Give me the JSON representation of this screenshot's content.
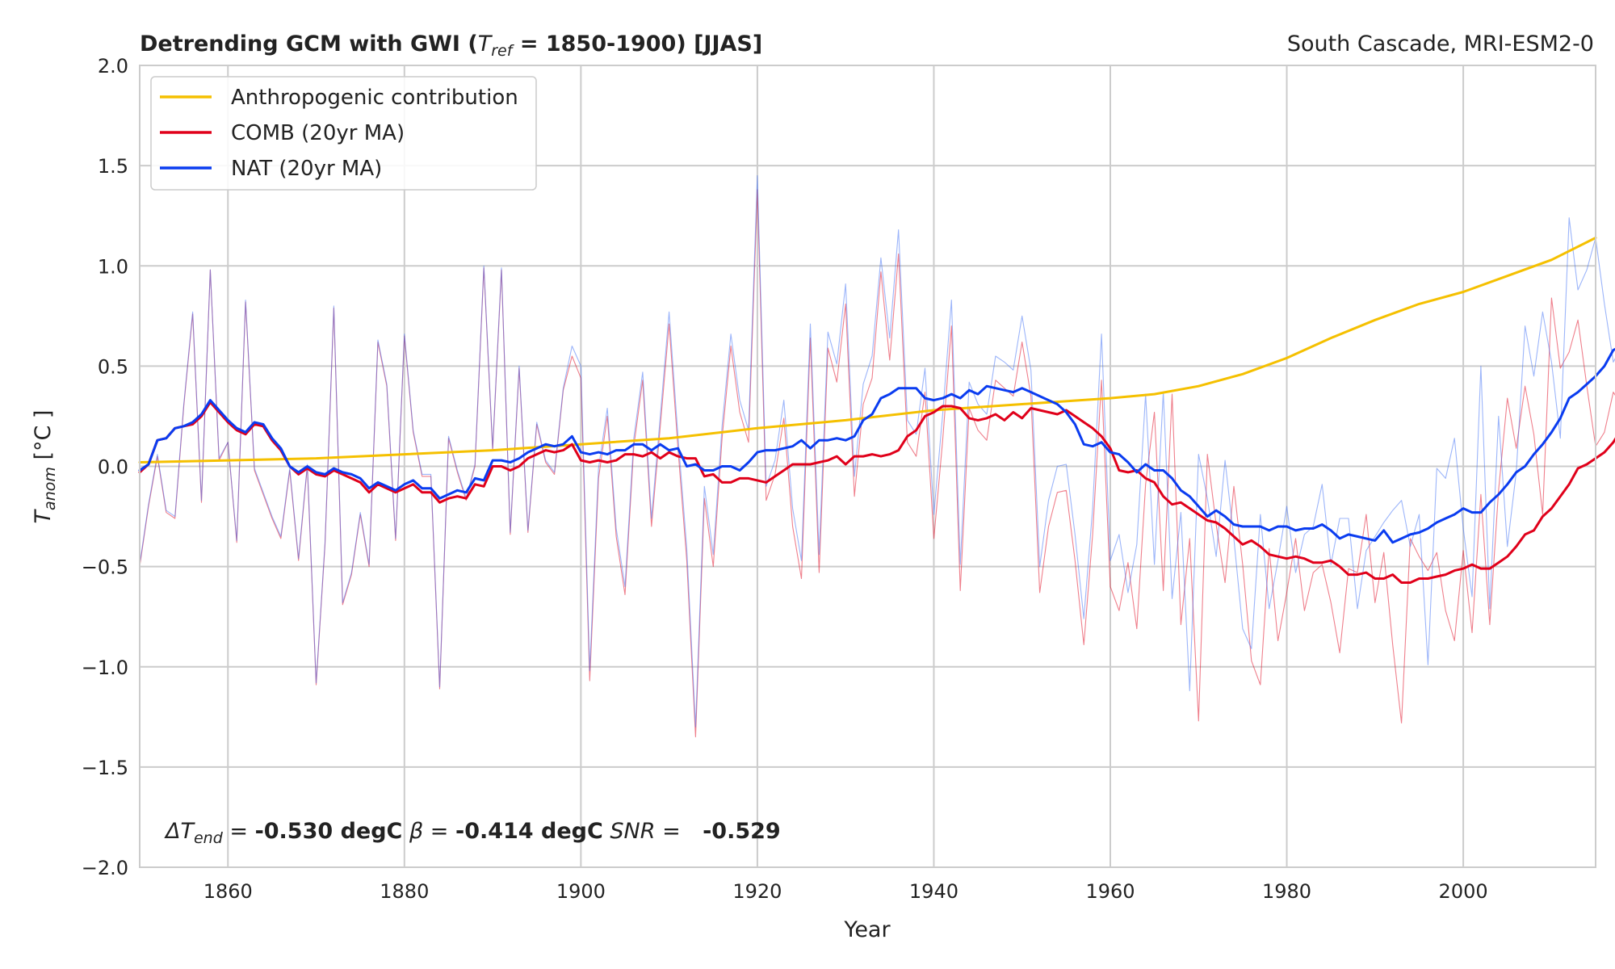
{
  "chart_data": {
    "type": "line",
    "title": "Detrending GCM with GWI (T_ref = 1850-1900) [JJAS]",
    "title_parts": {
      "prefix": "Detrending GCM with GWI (",
      "t": "T",
      "sub": "ref",
      "suffix": " = 1850-1900) [JJAS]"
    },
    "subtitle": "South Cascade, MRI-ESM2-0",
    "xlabel": "Year",
    "ylabel_parts": {
      "t": "T",
      "sub": "anom",
      "unit": " [°C ]"
    },
    "xlim": [
      1850,
      2015
    ],
    "ylim": [
      -2.0,
      2.0
    ],
    "xticks": [
      1860,
      1880,
      1900,
      1920,
      1940,
      1960,
      1980,
      2000
    ],
    "yticks": [
      -2.0,
      -1.5,
      -1.0,
      -0.5,
      0.0,
      0.5,
      1.0,
      1.5,
      2.0
    ],
    "ytick_labels": [
      "−2.0",
      "−1.5",
      "−1.0",
      "−0.5",
      "0.0",
      "0.5",
      "1.0",
      "1.5",
      "2.0"
    ],
    "grid": true,
    "legend_position": "upper-left",
    "legend": [
      {
        "name": "Anthropogenic contribution",
        "color": "#f5c000"
      },
      {
        "name": "COMB (20yr MA)",
        "color": "#e0001a"
      },
      {
        "name": "NAT (20yr MA)",
        "color": "#0a3cf0"
      }
    ],
    "annotation": {
      "delta_sym": "ΔT",
      "delta_sub": "end",
      "delta_val": " -0.530 degC",
      "beta_sym": "β",
      "beta_val": " -0.414 degC",
      "snr_sym": "SNR",
      "snr_val": "  -0.529",
      "eq": " = "
    },
    "x_start": 1850,
    "series": [
      {
        "name": "Anthropogenic contribution",
        "color": "#f5c000",
        "width": 3,
        "x": [
          1850,
          1860,
          1870,
          1880,
          1890,
          1900,
          1910,
          1920,
          1930,
          1940,
          1950,
          1960,
          1965,
          1970,
          1975,
          1980,
          1985,
          1990,
          1995,
          2000,
          2005,
          2010,
          2015
        ],
        "values": [
          0.02,
          0.03,
          0.04,
          0.06,
          0.08,
          0.11,
          0.14,
          0.19,
          0.23,
          0.28,
          0.31,
          0.34,
          0.36,
          0.4,
          0.46,
          0.54,
          0.64,
          0.73,
          0.81,
          0.87,
          0.95,
          1.03,
          1.14
        ]
      },
      {
        "name": "COMB (20yr MA)",
        "color": "#e0001a",
        "width": 3,
        "values": [
          -0.03,
          0.01,
          0.13,
          0.14,
          0.19,
          0.2,
          0.21,
          0.25,
          0.32,
          0.27,
          0.22,
          0.18,
          0.16,
          0.21,
          0.2,
          0.13,
          0.08,
          0.0,
          -0.04,
          -0.01,
          -0.04,
          -0.05,
          -0.02,
          -0.04,
          -0.06,
          -0.08,
          -0.13,
          -0.09,
          -0.11,
          -0.13,
          -0.11,
          -0.09,
          -0.13,
          -0.13,
          -0.18,
          -0.16,
          -0.15,
          -0.16,
          -0.09,
          -0.1,
          0.0,
          0.0,
          -0.02,
          0.0,
          0.04,
          0.06,
          0.08,
          0.07,
          0.08,
          0.11,
          0.03,
          0.02,
          0.03,
          0.02,
          0.03,
          0.06,
          0.06,
          0.05,
          0.07,
          0.04,
          0.07,
          0.05,
          0.04,
          0.04,
          -0.05,
          -0.04,
          -0.08,
          -0.08,
          -0.06,
          -0.06,
          -0.07,
          -0.08,
          -0.05,
          -0.02,
          0.01,
          0.01,
          0.01,
          0.02,
          0.03,
          0.05,
          0.01,
          0.05,
          0.05,
          0.06,
          0.05,
          0.06,
          0.08,
          0.15,
          0.18,
          0.25,
          0.27,
          0.3,
          0.3,
          0.29,
          0.24,
          0.23,
          0.24,
          0.26,
          0.23,
          0.27,
          0.24,
          0.29,
          0.28,
          0.27,
          0.26,
          0.28,
          0.25,
          0.22,
          0.19,
          0.15,
          0.09,
          -0.02,
          -0.03,
          -0.02,
          -0.06,
          -0.08,
          -0.15,
          -0.19,
          -0.18,
          -0.21,
          -0.24,
          -0.27,
          -0.28,
          -0.31,
          -0.35,
          -0.39,
          -0.37,
          -0.4,
          -0.44,
          -0.45,
          -0.46,
          -0.45,
          -0.46,
          -0.48,
          -0.48,
          -0.47,
          -0.5,
          -0.54,
          -0.54,
          -0.53,
          -0.56,
          -0.56,
          -0.54,
          -0.58,
          -0.58,
          -0.56,
          -0.56,
          -0.55,
          -0.54,
          -0.52,
          -0.51,
          -0.49,
          -0.51,
          -0.51,
          -0.48,
          -0.45,
          -0.4,
          -0.34,
          -0.32,
          -0.25,
          -0.21,
          -0.15,
          -0.09,
          -0.01,
          0.01,
          0.04,
          0.07,
          0.12,
          0.19,
          0.2
        ]
      },
      {
        "name": "NAT (20yr MA)",
        "color": "#0a3cf0",
        "width": 3,
        "values": [
          -0.02,
          0.01,
          0.13,
          0.14,
          0.19,
          0.2,
          0.22,
          0.26,
          0.33,
          0.28,
          0.23,
          0.19,
          0.17,
          0.22,
          0.21,
          0.14,
          0.09,
          0.0,
          -0.03,
          0.0,
          -0.03,
          -0.04,
          -0.01,
          -0.03,
          -0.04,
          -0.06,
          -0.11,
          -0.08,
          -0.1,
          -0.12,
          -0.09,
          -0.07,
          -0.11,
          -0.11,
          -0.16,
          -0.14,
          -0.12,
          -0.13,
          -0.06,
          -0.07,
          0.03,
          0.03,
          0.02,
          0.04,
          0.07,
          0.09,
          0.11,
          0.1,
          0.11,
          0.15,
          0.07,
          0.06,
          0.07,
          0.06,
          0.08,
          0.08,
          0.11,
          0.11,
          0.08,
          0.11,
          0.08,
          0.09,
          0.0,
          0.01,
          -0.02,
          -0.02,
          0.0,
          0.0,
          -0.02,
          0.02,
          0.07,
          0.08,
          0.08,
          0.09,
          0.1,
          0.13,
          0.09,
          0.13,
          0.13,
          0.14,
          0.13,
          0.15,
          0.23,
          0.26,
          0.34,
          0.36,
          0.39,
          0.39,
          0.39,
          0.34,
          0.33,
          0.34,
          0.36,
          0.34,
          0.38,
          0.36,
          0.4,
          0.39,
          0.38,
          0.37,
          0.39,
          0.37,
          0.35,
          0.33,
          0.31,
          0.27,
          0.21,
          0.11,
          0.1,
          0.12,
          0.07,
          0.06,
          0.02,
          -0.03,
          0.01,
          -0.02,
          -0.02,
          -0.06,
          -0.12,
          -0.15,
          -0.2,
          -0.25,
          -0.22,
          -0.25,
          -0.29,
          -0.3,
          -0.3,
          -0.3,
          -0.32,
          -0.3,
          -0.3,
          -0.32,
          -0.31,
          -0.31,
          -0.29,
          -0.32,
          -0.36,
          -0.34,
          -0.35,
          -0.36,
          -0.37,
          -0.32,
          -0.38,
          -0.36,
          -0.34,
          -0.33,
          -0.31,
          -0.28,
          -0.26,
          -0.24,
          -0.21,
          -0.23,
          -0.23,
          -0.18,
          -0.14,
          -0.09,
          -0.03,
          0.0,
          0.06,
          0.11,
          0.17,
          0.24,
          0.34,
          0.37,
          0.41,
          0.45,
          0.5,
          0.58,
          0.6
        ]
      },
      {
        "name": "",
        "color": "#e0001a",
        "width": 1.1,
        "opacity": 0.5,
        "values": [
          -0.5,
          -0.2,
          0.05,
          -0.23,
          -0.26,
          0.3,
          0.76,
          -0.18,
          0.98,
          0.03,
          0.12,
          -0.38,
          0.82,
          -0.02,
          -0.14,
          -0.26,
          -0.36,
          -0.02,
          -0.47,
          0.0,
          -1.09,
          -0.39,
          0.79,
          -0.69,
          -0.54,
          -0.24,
          -0.5,
          0.62,
          0.4,
          -0.37,
          0.65,
          0.17,
          -0.05,
          -0.05,
          -1.11,
          0.14,
          -0.03,
          -0.17,
          0.0,
          0.99,
          0.08,
          0.98,
          -0.34,
          0.49,
          -0.33,
          0.21,
          0.02,
          -0.04,
          0.38,
          0.55,
          0.44,
          -1.07,
          -0.06,
          0.25,
          -0.35,
          -0.64,
          0.1,
          0.43,
          -0.3,
          0.2,
          0.71,
          0.09,
          -0.47,
          -1.35,
          -0.16,
          -0.5,
          0.14,
          0.6,
          0.27,
          0.12,
          1.38,
          -0.17,
          -0.04,
          0.24,
          -0.3,
          -0.56,
          0.64,
          -0.53,
          0.59,
          0.42,
          0.81,
          -0.15,
          0.31,
          0.44,
          0.97,
          0.53,
          1.06,
          0.12,
          0.05,
          0.37,
          -0.36,
          0.13,
          0.7,
          -0.62,
          0.29,
          0.18,
          0.13,
          0.43,
          0.39,
          0.35,
          0.62,
          0.35,
          -0.63,
          -0.3,
          -0.13,
          -0.12,
          -0.47,
          -0.89,
          -0.34,
          0.43,
          -0.6,
          -0.72,
          -0.48,
          -0.81,
          -0.09,
          0.27,
          -0.62,
          0.36,
          -0.79,
          -0.36,
          -1.27,
          0.06,
          -0.29,
          -0.58,
          -0.1,
          -0.49,
          -0.97,
          -1.09,
          -0.41,
          -0.87,
          -0.63,
          -0.36,
          -0.72,
          -0.53,
          -0.49,
          -0.68,
          -0.93,
          -0.51,
          -0.53,
          -0.24,
          -0.68,
          -0.43,
          -0.89,
          -1.28,
          -0.36,
          -0.45,
          -0.52,
          -0.43,
          -0.72,
          -0.87,
          -0.42,
          -0.83,
          -0.14,
          -0.79,
          -0.12,
          0.34,
          0.09,
          0.4,
          0.16,
          -0.24,
          0.84,
          0.49,
          0.57,
          0.73,
          0.4,
          0.1,
          0.17,
          0.37,
          0.3,
          0.61,
          0.36
        ]
      },
      {
        "name": "",
        "color": "#3a6cf5",
        "width": 1.1,
        "opacity": 0.5,
        "values": [
          -0.49,
          -0.19,
          0.06,
          -0.22,
          -0.25,
          0.31,
          0.77,
          -0.17,
          0.98,
          0.04,
          0.12,
          -0.37,
          0.83,
          -0.01,
          -0.13,
          -0.25,
          -0.35,
          -0.01,
          -0.46,
          0.01,
          -1.08,
          -0.38,
          0.8,
          -0.68,
          -0.53,
          -0.23,
          -0.49,
          0.63,
          0.41,
          -0.36,
          0.66,
          0.18,
          -0.04,
          -0.04,
          -1.1,
          0.15,
          -0.02,
          -0.16,
          0.01,
          1.0,
          0.09,
          0.99,
          -0.33,
          0.5,
          -0.32,
          0.22,
          0.03,
          -0.03,
          0.39,
          0.6,
          0.5,
          -1.02,
          -0.01,
          0.29,
          -0.31,
          -0.6,
          0.14,
          0.47,
          -0.26,
          0.25,
          0.77,
          0.15,
          -0.41,
          -1.3,
          -0.1,
          -0.44,
          0.2,
          0.66,
          0.33,
          0.18,
          1.45,
          -0.1,
          0.03,
          0.33,
          -0.21,
          -0.47,
          0.71,
          -0.44,
          0.67,
          0.51,
          0.91,
          -0.05,
          0.41,
          0.55,
          1.04,
          0.64,
          1.18,
          0.23,
          0.16,
          0.49,
          -0.24,
          0.26,
          0.83,
          -0.49,
          0.42,
          0.31,
          0.26,
          0.55,
          0.52,
          0.48,
          0.75,
          0.48,
          -0.5,
          -0.17,
          0.0,
          0.01,
          -0.34,
          -0.76,
          -0.21,
          0.66,
          -0.47,
          -0.34,
          -0.63,
          -0.39,
          0.36,
          -0.49,
          0.37,
          -0.66,
          -0.23,
          -1.12,
          0.06,
          -0.16,
          -0.45,
          0.03,
          -0.36,
          -0.81,
          -0.91,
          -0.24,
          -0.71,
          -0.47,
          -0.2,
          -0.53,
          -0.34,
          -0.3,
          -0.09,
          -0.49,
          -0.26,
          -0.26,
          -0.71,
          -0.42,
          -0.35,
          -0.28,
          -0.22,
          -0.17,
          -0.4,
          -0.24,
          -0.99,
          -0.01,
          -0.06,
          0.14,
          -0.31,
          -0.65,
          0.5,
          -0.71,
          0.25,
          -0.4,
          -0.03,
          0.7,
          0.45,
          0.77,
          0.52,
          0.14,
          1.24,
          0.88,
          0.98,
          1.14,
          0.81,
          0.52,
          0.6,
          0.81,
          0.75,
          1.07,
          0.82
        ]
      }
    ]
  }
}
